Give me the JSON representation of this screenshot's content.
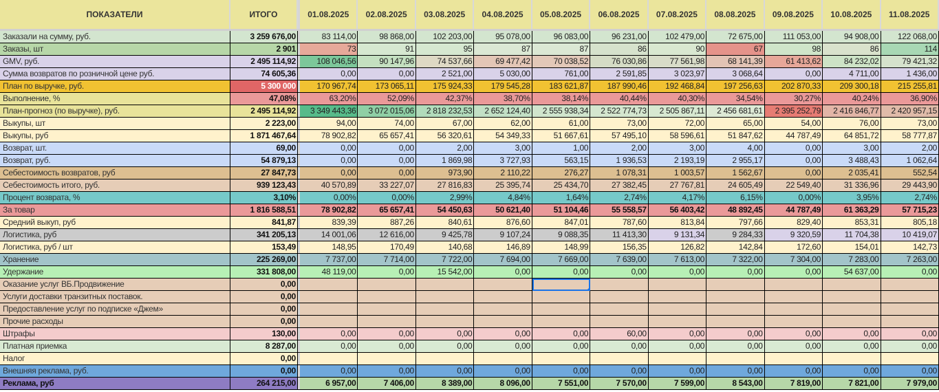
{
  "header": {
    "indicator_label": "ПОКАЗАТЕЛИ",
    "total_label": "ИТОГО",
    "dates": [
      "01.08.2025",
      "02.08.2025",
      "03.08.2025",
      "04.08.2025",
      "05.08.2025",
      "06.08.2025",
      "07.08.2025",
      "08.08.2025",
      "09.08.2025",
      "10.08.2025",
      "11.08.2025"
    ],
    "bg": "#ebe59c"
  },
  "rows": [
    {
      "label": "Заказали на сумму, руб.",
      "total": "3 259 676,00",
      "bg": "#d3e5cf",
      "values": [
        "83 114,00",
        "98 868,00",
        "102 203,00",
        "95 078,00",
        "96 083,00",
        "96 231,00",
        "102 479,00",
        "72 675,00",
        "111 053,00",
        "94 908,00",
        "122 068,00"
      ]
    },
    {
      "label": "Заказы, шт",
      "total": "2 901",
      "bg": "#b7d7a8",
      "values": [
        "73",
        "91",
        "95",
        "87",
        "87",
        "86",
        "90",
        "67",
        "98",
        "86",
        "114"
      ],
      "cell_colors": [
        "#e6a99a",
        "#d6e8d0",
        "#d6e8d0",
        "#dbe8d4",
        "#dbe8d4",
        "#d6e2cc",
        "#d9e8d0",
        "#e5938a",
        "#cfe5c9",
        "#d9e2cc",
        "#a8d8b4"
      ]
    },
    {
      "label": "GMV, руб.",
      "total": "2 495 114,92",
      "bg": "#d9d2e9",
      "values": [
        "108 046,56",
        "90 147,96",
        "74 537,66",
        "69 477,42",
        "70 038,52",
        "76 030,86",
        "77 561,98",
        "68 141,39",
        "61 413,62",
        "84 232,02",
        "79 421,32"
      ],
      "cell_colors": [
        "#7cc79a",
        "#c4e0c0",
        "#ded9c4",
        "#e3c6b6",
        "#e2c8b8",
        "#d5dcc5",
        "#d8dcc8",
        "#e2c3b4",
        "#e6a799",
        "#cde3c6",
        "#d5e2cc"
      ]
    },
    {
      "label": "Сумма возвратов по розничной цене руб.",
      "total": "74 605,36",
      "bg": "#d9d2e9",
      "values": [
        "0,00",
        "0,00",
        "2 521,00",
        "5 030,00",
        "761,00",
        "2 591,85",
        "3 023,97",
        "3 068,64",
        "0,00",
        "4 711,00",
        "1 436,00"
      ]
    },
    {
      "label": "План по выручке, руб.",
      "total": "5 300 000",
      "bg": "#f1c232",
      "total_bg": "#e06666",
      "total_color": "#ffffff",
      "values": [
        "170 967,74",
        "173 065,11",
        "175 924,33",
        "179 545,28",
        "183 621,87",
        "187 990,46",
        "192 468,84",
        "197 256,63",
        "202 870,33",
        "209 300,18",
        "215 255,81"
      ]
    },
    {
      "label": "Выполнение, %",
      "total": "47,08%",
      "bg": "#e8e39a",
      "total_bg": "#ea9999",
      "cells_bg": "#ea9999",
      "values": [
        "63,20%",
        "52,09%",
        "42,37%",
        "38,70%",
        "38,14%",
        "40,44%",
        "40,30%",
        "34,54%",
        "30,27%",
        "40,24%",
        "36,90%"
      ]
    },
    {
      "label": "План-прогноз (по выручке), руб.",
      "total": "2 495 114,92",
      "bg": "#e8e39a",
      "values": [
        "3 349 443,36",
        "3 072 015,06",
        "2 818 232,53",
        "2 652 124,40",
        "2 555 938,34",
        "2 522 774,73",
        "2 505 867,11",
        "2 456 681,61",
        "2 395 252,79",
        "2 416 846,77",
        "2 420 957,15"
      ],
      "cell_colors": [
        "#57bb8a",
        "#8fcfa5",
        "#b1dbbb",
        "#c2e0c5",
        "#d0e5cd",
        "#d4e6cf",
        "#d7e8d1",
        "#dde9d5",
        "#e67c73",
        "#e2b5a7",
        "#e0bba9"
      ]
    },
    {
      "label": "Выкупы, шт",
      "total": "2 223,00",
      "bg": "#fff2cc",
      "values": [
        "94,00",
        "74,00",
        "67,00",
        "62,00",
        "61,00",
        "73,00",
        "72,00",
        "65,00",
        "54,00",
        "76,00",
        "73,00"
      ]
    },
    {
      "label": "Выкупы, руб",
      "total": "1 871 467,64",
      "bg": "#fff2cc",
      "values": [
        "78 902,82",
        "65 657,41",
        "56 320,61",
        "54 349,33",
        "51 667,61",
        "57 495,10",
        "58 596,61",
        "51 847,62",
        "44 787,49",
        "64 851,72",
        "58 777,87"
      ]
    },
    {
      "label": "Возврат, шт.",
      "total": "69,00",
      "bg": "#c9daf8",
      "values": [
        "0,00",
        "0,00",
        "2,00",
        "3,00",
        "1,00",
        "2,00",
        "3,00",
        "4,00",
        "0,00",
        "3,00",
        "2,00"
      ]
    },
    {
      "label": "Возврат, руб.",
      "total": "54 879,13",
      "bg": "#c9daf8",
      "values": [
        "0,00",
        "0,00",
        "1 869,98",
        "3 727,93",
        "563,15",
        "1 936,53",
        "2 193,19",
        "2 955,17",
        "0,00",
        "3 488,43",
        "1 062,64"
      ]
    },
    {
      "label": "Себестоимость возвратов, руб",
      "total": "27 847,73",
      "bg": "#ddbf91",
      "values": [
        "0,00",
        "0,00",
        "973,90",
        "2 110,22",
        "276,27",
        "1 078,31",
        "1 003,57",
        "1 562,67",
        "0,00",
        "2 035,41",
        "552,54"
      ]
    },
    {
      "label": "Себестоимость итого, руб.",
      "total": "939 123,43",
      "bg": "#e6cdb7",
      "values": [
        "40 570,89",
        "33 227,07",
        "27 816,83",
        "25 395,74",
        "25 434,70",
        "27 382,45",
        "27 767,81",
        "24 605,49",
        "22 549,40",
        "31 336,96",
        "29 443,90"
      ]
    },
    {
      "label": "Процент возврата, %",
      "total": "3,10%",
      "bg": "#76c9c9",
      "values": [
        "0,00%",
        "0,00%",
        "2,99%",
        "4,84%",
        "1,64%",
        "2,74%",
        "4,17%",
        "6,15%",
        "0,00%",
        "3,95%",
        "2,74%"
      ]
    },
    {
      "label": "За товар",
      "total": "1 816 588,51",
      "bg": "#ea9999",
      "bold": true,
      "values": [
        "78 902,82",
        "65 657,41",
        "54 450,63",
        "50 621,40",
        "51 104,46",
        "55 558,57",
        "56 403,42",
        "48 892,45",
        "44 787,49",
        "61 363,29",
        "57 715,23"
      ]
    },
    {
      "label": "Средний выкуп, руб",
      "total": "841,87",
      "bg": "#fff2cc",
      "values": [
        "839,39",
        "887,26",
        "840,61",
        "876,60",
        "847,01",
        "787,60",
        "813,84",
        "797,66",
        "829,40",
        "853,31",
        "805,18"
      ]
    },
    {
      "label": "Логистика, руб",
      "total": "341 205,13",
      "bg": "#cccccc",
      "values": [
        "14 001,06",
        "12 616,00",
        "9 425,78",
        "9 107,24",
        "9 088,35",
        "11 413,30",
        "9 131,34",
        "9 284,33",
        "9 320,59",
        "11 704,38",
        "10 419,07"
      ],
      "cell_colors": [
        "#cccccc",
        "#cccccc",
        "#cccccc",
        "#cccccc",
        "#cccccc",
        "#cccccc",
        "#d9d2e9",
        "#cccccc",
        "#d9d2e9",
        "#d9d2e9",
        "#d9d2e9"
      ]
    },
    {
      "label": "Логистика, руб / шт",
      "total": "153,49",
      "bg": "#fff2cc",
      "values": [
        "148,95",
        "170,49",
        "140,68",
        "146,89",
        "148,99",
        "156,35",
        "126,82",
        "142,84",
        "172,60",
        "154,01",
        "142,73"
      ]
    },
    {
      "label": "Хранение",
      "total": "225 269,00",
      "bg": "#a2c4c9",
      "values": [
        "7 737,00",
        "7 714,00",
        "7 722,00",
        "7 694,00",
        "7 669,00",
        "7 639,00",
        "7 613,00",
        "7 322,00",
        "7 304,00",
        "7 283,00",
        "7 263,00"
      ]
    },
    {
      "label": "Удержание",
      "total": "331 808,00",
      "bg": "#b7f0b5",
      "values": [
        "48 119,00",
        "0,00",
        "15 542,00",
        "0,00",
        "0,00",
        "0,00",
        "0,00",
        "0,00",
        "0,00",
        "54 637,00",
        "0,00"
      ]
    },
    {
      "label": "Оказание услуг ВБ.Продвижение",
      "total": "0,00",
      "bg": "#e6cdb7",
      "values": [
        "",
        "",
        "",
        "",
        "",
        "",
        "",
        "",
        "",
        "",
        ""
      ],
      "selected_index": 4
    },
    {
      "label": "Услуги доставки транзитных поставок.",
      "total": "0,00",
      "bg": "#e6cdb7",
      "values": [
        "",
        "",
        "",
        "",
        "",
        "",
        "",
        "",
        "",
        "",
        ""
      ]
    },
    {
      "label": "Предоставление услуг по подписке «Джем»",
      "total": "0,00",
      "bg": "#e6cdb7",
      "values": [
        "",
        "",
        "",
        "",
        "",
        "",
        "",
        "",
        "",
        "",
        ""
      ]
    },
    {
      "label": "Прочие расходы",
      "total": "0,00",
      "bg": "#e6cdb7",
      "values": [
        "",
        "",
        "",
        "",
        "",
        "",
        "",
        "",
        "",
        "",
        ""
      ]
    },
    {
      "label": "Штрафы",
      "total": "130,00",
      "bg": "#f4cccc",
      "values": [
        "0,00",
        "0,00",
        "0,00",
        "0,00",
        "0,00",
        "60,00",
        "0,00",
        "0,00",
        "0,00",
        "0,00",
        "0,00"
      ]
    },
    {
      "label": "Платная приемка",
      "total": "8 287,00",
      "bg": "#d9ead3",
      "values": [
        "0,00",
        "0,00",
        "0,00",
        "0,00",
        "0,00",
        "0,00",
        "0,00",
        "0,00",
        "0,00",
        "0,00",
        "0,00"
      ]
    },
    {
      "label": "Налог",
      "total": "0,00",
      "bg": "#fff2cc",
      "values": [
        "",
        "",
        "",
        "",
        "",
        "",
        "",
        "",
        "",
        "",
        ""
      ]
    },
    {
      "label": "Внешняя реклама, руб.",
      "total": "0,00",
      "bg": "#6fa8dc",
      "values": [
        "0,00",
        "0,00",
        "0,00",
        "0,00",
        "0,00",
        "0,00",
        "0,00",
        "0,00",
        "0,00",
        "0,00",
        "0,00"
      ]
    },
    {
      "label": "Реклама, руб",
      "total": "264 215,00",
      "bg": "#8e7cc3",
      "cells_bg": "#b6d7a8",
      "bold": true,
      "label_bold": true,
      "values": [
        "6 957,00",
        "7 406,00",
        "8 389,00",
        "8 096,00",
        "7 551,00",
        "7 570,00",
        "7 599,00",
        "8 543,00",
        "7 819,00",
        "7 821,00",
        "7 979,00"
      ]
    }
  ]
}
